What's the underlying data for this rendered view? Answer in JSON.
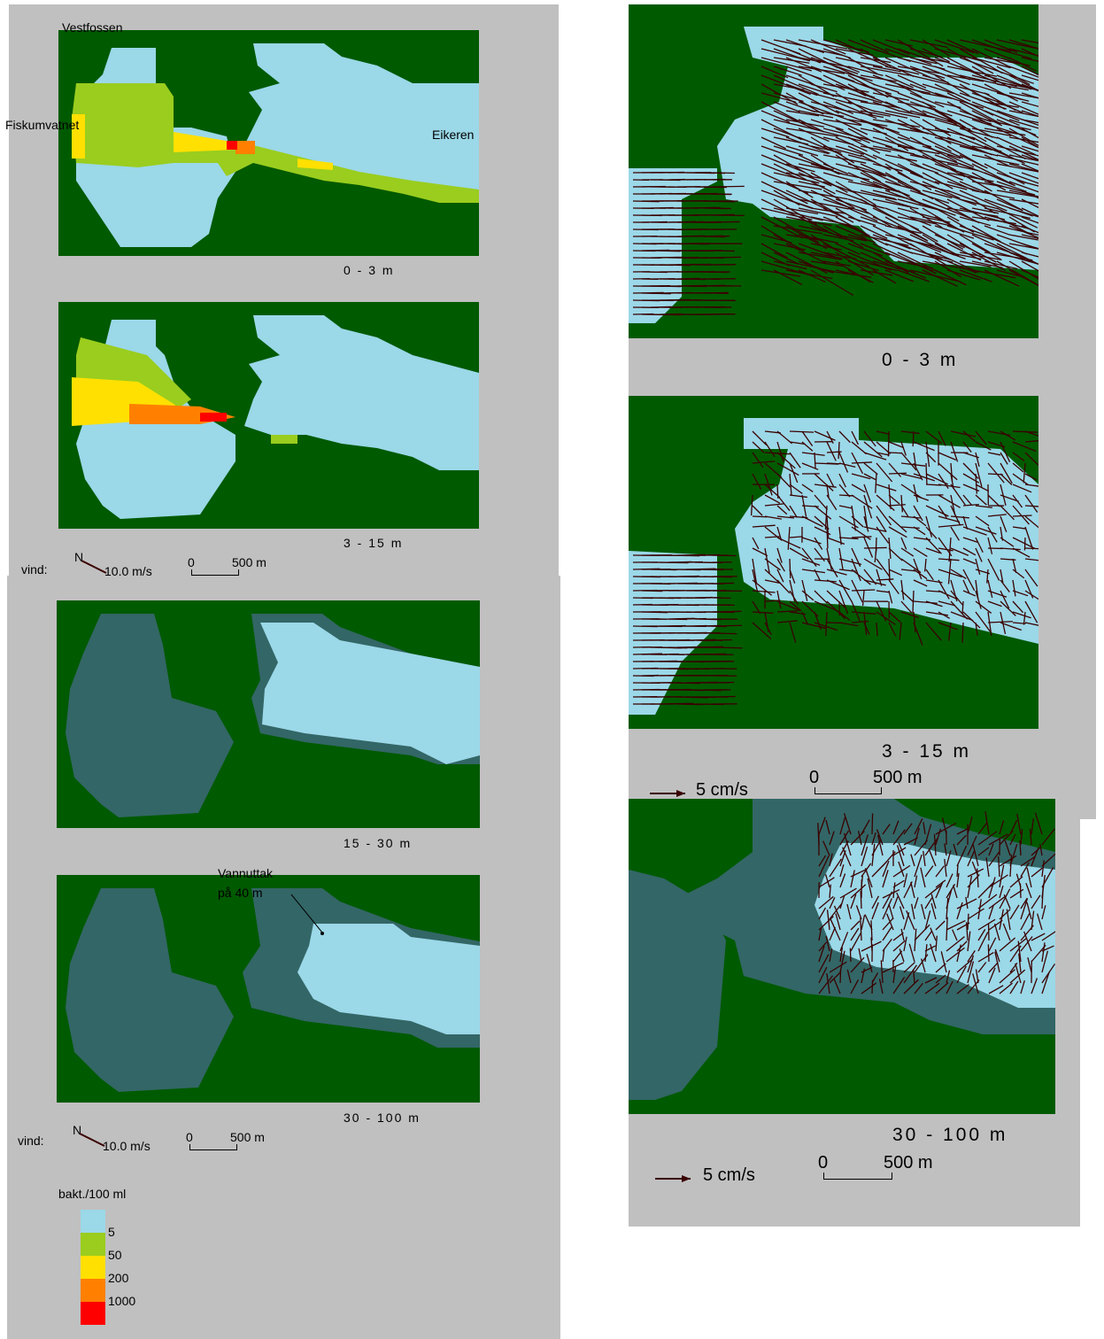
{
  "panel_a": {
    "place_labels": {
      "vestfossen": "Vestfossen",
      "fiskumvatnet": "Fiskumvatnet",
      "eikeren": "Eikeren"
    },
    "depth_1": "0 - 3 m",
    "depth_2": "3 - 15 m",
    "wind_label": "vind:",
    "wind_north": "N",
    "wind_speed": "10.0 m/s",
    "scale_zero": "0",
    "scale_dist": "500 m"
  },
  "panel_b": {
    "depth_3": "15 - 30 m",
    "depth_4": "30 - 100 m",
    "annotation_line1": "Vannuttak",
    "annotation_line2": "på 40 m",
    "wind_label": "vind:",
    "wind_north": "N",
    "wind_speed": "10.0 m/s",
    "scale_zero": "0",
    "scale_dist": "500 m",
    "legend_title": "bakt./100 ml",
    "legend": [
      {
        "value": "5",
        "color": "#9bd8e8"
      },
      {
        "value": "50",
        "color": "#9acd1e"
      },
      {
        "value": "200",
        "color": "#ffe000"
      },
      {
        "value": "1000",
        "color": "#ff8000"
      },
      {
        "value": "",
        "color": "#ff0000"
      }
    ]
  },
  "panel_c": {
    "depth_1": "0 - 3 m",
    "depth_2": "3 - 15 m",
    "arrow_label": "5 cm/s",
    "scale_zero": "0",
    "scale_dist": "500 m"
  },
  "panel_d": {
    "depth": "30 - 100 m",
    "arrow_label": "5 cm/s",
    "scale_zero": "0",
    "scale_dist": "500 m"
  },
  "colors": {
    "land": "#005a00",
    "water_low": "#9bd8e8",
    "deep_basin": "#336666",
    "panel_bg": "#c0c0c0",
    "arrow": "#3a0000"
  }
}
